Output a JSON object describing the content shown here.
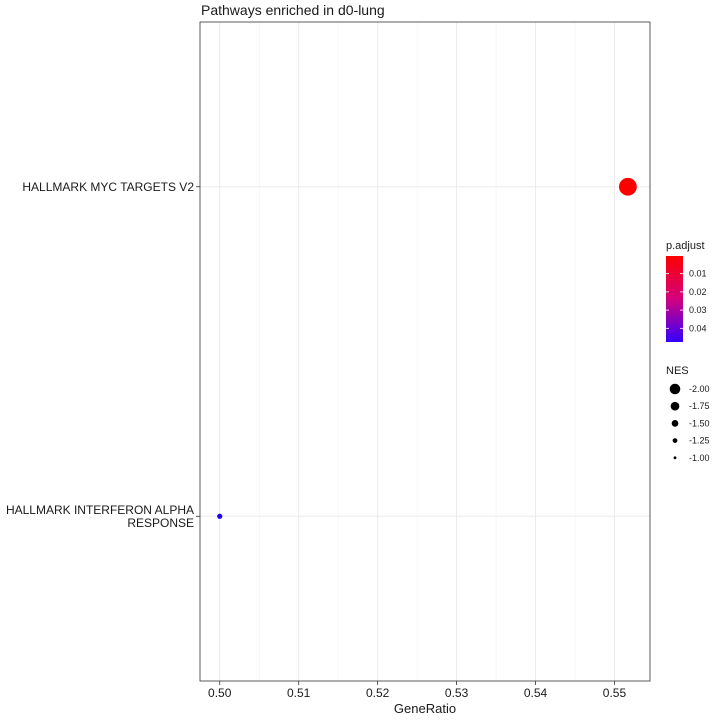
{
  "chart_data": {
    "type": "scatter",
    "title": "Pathways enriched in d0-lung",
    "xlabel": "GeneRatio",
    "ylabel": "",
    "xlim": [
      0.4975,
      0.5545
    ],
    "xticks": [
      "0.50",
      "0.51",
      "0.52",
      "0.53",
      "0.54",
      "0.55"
    ],
    "categories": [
      {
        "lines": [
          "HALLMARK INTERFERON ALPHA",
          "RESPONSE"
        ]
      },
      {
        "lines": [
          "HALLMARK MYC TARGETS V2"
        ]
      }
    ],
    "points": [
      {
        "category_index": 1,
        "x": 0.5517,
        "p_adjust": 0.002,
        "nes": -2.05,
        "color": "#ff0000"
      },
      {
        "category_index": 0,
        "x": 0.5,
        "p_adjust": 0.048,
        "nes": -1.0,
        "color": "#1f00ff"
      }
    ],
    "grid": true,
    "legend_placement": "right",
    "color_legend": {
      "title": "p.adjust",
      "ticks": [
        "0.01",
        "0.02",
        "0.03",
        "0.04"
      ],
      "low_color": "#ff0000",
      "high_color": "#3300ff"
    },
    "size_legend": {
      "title": "NES",
      "labels": [
        "-2.00",
        "-1.75",
        "-1.50",
        "-1.25",
        "-1.00"
      ],
      "values": [
        -2.0,
        -1.75,
        -1.5,
        -1.25,
        -1.0
      ]
    }
  }
}
